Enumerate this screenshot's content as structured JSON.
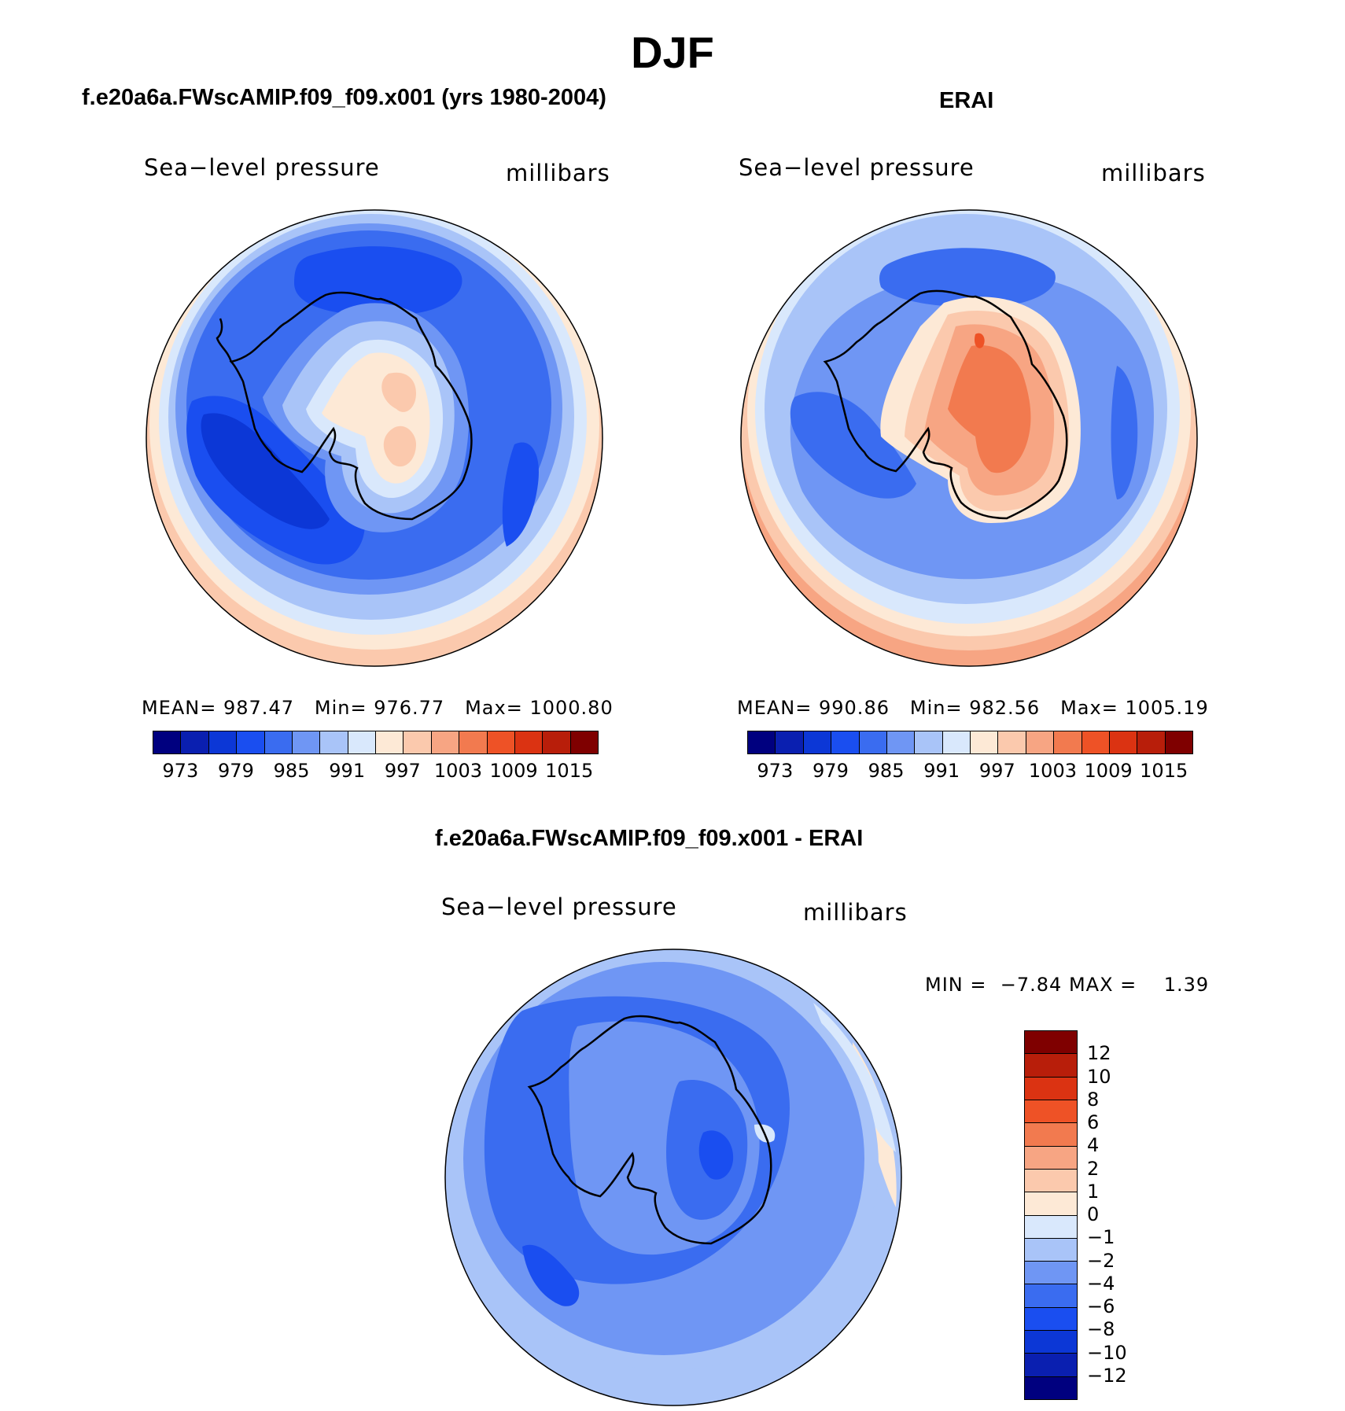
{
  "title": "DJF",
  "panels": [
    {
      "id": "model",
      "header": "f.e20a6a.FWscAMIP.f09_f09.x001 (yrs 1980-2004)",
      "variable": "Sea−level pressure",
      "units": "millibars",
      "stats": {
        "mean_label": "MEAN=",
        "mean": "987.47",
        "min_label": "Min=",
        "min": "976.77",
        "max_label": "Max=",
        "max": "1000.80"
      }
    },
    {
      "id": "obs",
      "header": "ERAI",
      "variable": "Sea−level pressure",
      "units": "millibars",
      "stats": {
        "mean_label": "MEAN=",
        "mean": "990.86",
        "min_label": "Min=",
        "min": "982.56",
        "max_label": "Max=",
        "max": "1005.19"
      }
    },
    {
      "id": "diff",
      "header": "f.e20a6a.FWscAMIP.f09_f09.x001 - ERAI",
      "variable": "Sea−level pressure",
      "units": "millibars",
      "stats": {
        "min_label": "MIN =",
        "min": "−7.84",
        "max_label": "MAX =",
        "max": "1.39"
      }
    }
  ],
  "colorbars": {
    "absolute": {
      "colors": [
        "#00007f",
        "#0a1fb0",
        "#0c37d6",
        "#1a4ef0",
        "#3a6cf0",
        "#6f96f4",
        "#a9c4f8",
        "#d9e8fc",
        "#fde9d6",
        "#fbc9ad",
        "#f7a583",
        "#f27a4f",
        "#ee5226",
        "#db3312",
        "#b81e0a",
        "#7f0000"
      ],
      "tick_labels": [
        "973",
        "979",
        "985",
        "991",
        "997",
        "1003",
        "1009",
        "1015"
      ]
    },
    "difference": {
      "colors": [
        "#7f0000",
        "#b81e0a",
        "#db3312",
        "#ee5226",
        "#f27a4f",
        "#f7a583",
        "#fbc9ad",
        "#fde9d6",
        "#d9e8fc",
        "#a9c4f8",
        "#6f96f4",
        "#3a6cf0",
        "#1a4ef0",
        "#0c37d6",
        "#0a1fb0",
        "#00007f"
      ],
      "tick_labels": [
        "12",
        "10",
        "8",
        "6",
        "4",
        "2",
        "1",
        "0",
        "−1",
        "−2",
        "−4",
        "−6",
        "−8",
        "−10",
        "−12"
      ]
    }
  },
  "map_data": {
    "projection": "south-polar stereographic",
    "region": "Antarctica / Southern Ocean",
    "field": "sea-level pressure",
    "season": "DJF"
  }
}
